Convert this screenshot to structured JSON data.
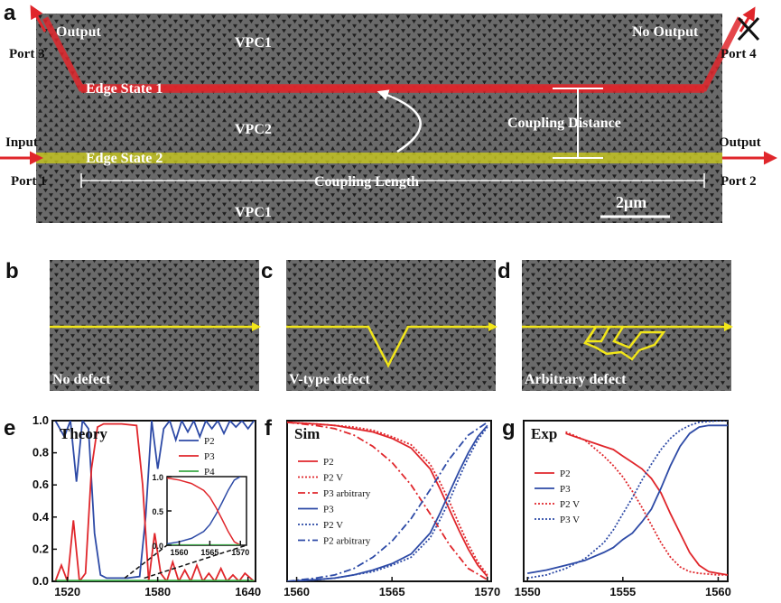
{
  "colors": {
    "red": "#e0262b",
    "blue": "#2d4aa6",
    "green": "#3aa845",
    "yellow": "#f2e619",
    "sem": "#555555"
  },
  "panel_a": {
    "letter": "a",
    "vpc_top": "VPC1",
    "vpc_mid": "VPC2",
    "vpc_bot": "VPC1",
    "output_tl": "Output",
    "port3": "Port 3",
    "no_output": "No Output",
    "port4": "Port 4",
    "input": "Input",
    "port1": "Port 1",
    "output_r": "Output",
    "port2": "Port 2",
    "edge1": "Edge State 1",
    "edge2": "Edge State 2",
    "coupling_distance": "Coupling Distance",
    "coupling_length": "Coupling Length",
    "scale": "2μm"
  },
  "panel_b": {
    "letter": "b",
    "label": "No defect"
  },
  "panel_c": {
    "letter": "c",
    "label": "V-type defect"
  },
  "panel_d": {
    "letter": "d",
    "label": "Arbitrary defect"
  },
  "chart_data": [
    {
      "panel": "e",
      "type": "line",
      "title": "Theory",
      "xlim": [
        1510,
        1645
      ],
      "ylim": [
        0,
        1.0
      ],
      "xticks": [
        1520,
        1580,
        1640
      ],
      "yticks": [
        0.0,
        0.2,
        0.4,
        0.6,
        0.8,
        1.0
      ],
      "ytick_labels": [
        "0.0",
        "0.2",
        "0.4",
        "0.6",
        "0.8",
        "1.0"
      ],
      "series": [
        {
          "name": "P2",
          "color": "#2d4aa6",
          "x": [
            1512,
            1518,
            1522,
            1526,
            1530,
            1534,
            1538,
            1542,
            1546,
            1550,
            1560,
            1568,
            1572,
            1576,
            1580,
            1584,
            1588,
            1592,
            1596,
            1600,
            1604,
            1608,
            1612,
            1616,
            1620,
            1624,
            1628,
            1632,
            1636,
            1640,
            1644
          ],
          "y": [
            1.0,
            0.9,
            1.0,
            0.62,
            1.0,
            0.95,
            0.3,
            0.04,
            0.02,
            0.02,
            0.02,
            0.03,
            0.4,
            1.0,
            0.7,
            0.95,
            1.0,
            0.88,
            1.0,
            0.93,
            1.0,
            0.9,
            1.0,
            0.95,
            1.0,
            0.92,
            1.0,
            0.96,
            1.0,
            0.95,
            1.0
          ]
        },
        {
          "name": "P3",
          "color": "#e0262b",
          "x": [
            1512,
            1516,
            1520,
            1524,
            1528,
            1532,
            1536,
            1540,
            1544,
            1548,
            1556,
            1566,
            1570,
            1574,
            1578,
            1582,
            1586,
            1590,
            1594,
            1598,
            1602,
            1606,
            1610,
            1614,
            1618,
            1622,
            1626,
            1630,
            1634,
            1638,
            1644
          ],
          "y": [
            0.0,
            0.1,
            0.0,
            0.38,
            0.0,
            0.05,
            0.7,
            0.96,
            0.98,
            0.98,
            0.98,
            0.97,
            0.6,
            0.0,
            0.3,
            0.05,
            0.0,
            0.12,
            0.0,
            0.07,
            0.0,
            0.1,
            0.0,
            0.05,
            0.0,
            0.08,
            0.0,
            0.04,
            0.0,
            0.05,
            0.0
          ]
        },
        {
          "name": "P4",
          "color": "#3aa845",
          "x": [
            1512,
            1644
          ],
          "y": [
            0.005,
            0.005
          ]
        }
      ],
      "inset": {
        "xlim": [
          1558,
          1571
        ],
        "ylim": [
          0,
          1.0
        ],
        "xticks": [
          1560,
          1565,
          1570
        ],
        "yticks": [
          0.0,
          0.5,
          1.0
        ],
        "ytick_labels": [
          "0.0",
          "0.5",
          "1.0"
        ],
        "series": [
          {
            "name": "P2",
            "color": "#2d4aa6",
            "x": [
              1558,
              1560,
              1562,
              1564,
              1565,
              1566,
              1567,
              1568,
              1569,
              1570
            ],
            "y": [
              0.02,
              0.05,
              0.1,
              0.2,
              0.3,
              0.45,
              0.62,
              0.8,
              0.95,
              1.0
            ]
          },
          {
            "name": "P3",
            "color": "#e0262b",
            "x": [
              1558,
              1560,
              1562,
              1564,
              1565,
              1566,
              1567,
              1568,
              1569,
              1570
            ],
            "y": [
              0.98,
              0.95,
              0.9,
              0.8,
              0.7,
              0.55,
              0.38,
              0.2,
              0.05,
              0.0
            ]
          },
          {
            "name": "P4",
            "color": "#3aa845",
            "x": [
              1558,
              1570
            ],
            "y": [
              0.005,
              0.005
            ]
          }
        ]
      }
    },
    {
      "panel": "f",
      "type": "line",
      "title": "Sim",
      "xlim": [
        1559.5,
        1570.2
      ],
      "ylim": [
        0,
        1.0
      ],
      "xticks": [
        1560,
        1565,
        1570
      ],
      "series": [
        {
          "name": "P2",
          "color": "#e0262b",
          "style": "solid",
          "x": [
            1559.5,
            1561,
            1562,
            1563,
            1564,
            1565,
            1566,
            1567,
            1567.5,
            1568,
            1568.5,
            1569,
            1569.5,
            1570
          ],
          "y": [
            0.99,
            0.98,
            0.97,
            0.95,
            0.93,
            0.89,
            0.83,
            0.7,
            0.58,
            0.45,
            0.32,
            0.2,
            0.1,
            0.03
          ]
        },
        {
          "name": "P2 V",
          "color": "#e0262b",
          "style": "dotted",
          "x": [
            1559.5,
            1561,
            1562,
            1563,
            1564,
            1565,
            1566,
            1567,
            1567.5,
            1568,
            1568.5,
            1569,
            1569.5,
            1570
          ],
          "y": [
            0.99,
            0.98,
            0.97,
            0.96,
            0.94,
            0.9,
            0.85,
            0.73,
            0.62,
            0.5,
            0.36,
            0.23,
            0.12,
            0.04
          ]
        },
        {
          "name": "P3 arbitrary",
          "color": "#e0262b",
          "style": "dashdot",
          "x": [
            1559.5,
            1561,
            1562,
            1563,
            1564,
            1565,
            1566,
            1567,
            1568,
            1569,
            1570
          ],
          "y": [
            0.99,
            0.97,
            0.95,
            0.91,
            0.84,
            0.74,
            0.6,
            0.42,
            0.23,
            0.08,
            0.01
          ]
        },
        {
          "name": "P3",
          "color": "#2d4aa6",
          "style": "solid",
          "x": [
            1559.5,
            1561,
            1562,
            1563,
            1564,
            1565,
            1566,
            1567,
            1567.5,
            1568,
            1568.5,
            1569,
            1569.5,
            1570
          ],
          "y": [
            0.0,
            0.01,
            0.02,
            0.04,
            0.07,
            0.11,
            0.17,
            0.3,
            0.42,
            0.55,
            0.68,
            0.8,
            0.9,
            0.97
          ]
        },
        {
          "name": "P2 V",
          "color": "#2d4aa6",
          "style": "dotted",
          "x": [
            1559.5,
            1561,
            1562,
            1563,
            1564,
            1565,
            1566,
            1567,
            1567.5,
            1568,
            1568.5,
            1569,
            1569.5,
            1570
          ],
          "y": [
            0.0,
            0.01,
            0.02,
            0.04,
            0.06,
            0.1,
            0.15,
            0.27,
            0.38,
            0.5,
            0.64,
            0.77,
            0.88,
            0.96
          ]
        },
        {
          "name": "P2 arbitrary",
          "color": "#2d4aa6",
          "style": "dashdot",
          "x": [
            1559.5,
            1561,
            1562,
            1563,
            1564,
            1565,
            1566,
            1567,
            1568,
            1569,
            1570
          ],
          "y": [
            0.0,
            0.02,
            0.04,
            0.08,
            0.15,
            0.25,
            0.39,
            0.57,
            0.76,
            0.91,
            0.99
          ]
        }
      ]
    },
    {
      "panel": "g",
      "type": "line",
      "title": "Exp",
      "xlim": [
        1549.8,
        1560.5
      ],
      "ylim": [
        0,
        1.0
      ],
      "xticks": [
        1550,
        1555,
        1560
      ],
      "series": [
        {
          "name": "P2",
          "color": "#e0262b",
          "style": "solid",
          "x": [
            1552,
            1552.5,
            1553,
            1553.5,
            1554,
            1554.5,
            1555,
            1555.5,
            1556,
            1556.5,
            1557,
            1557.5,
            1558,
            1558.5,
            1559,
            1559.5,
            1560,
            1560.5
          ],
          "y": [
            0.92,
            0.9,
            0.88,
            0.86,
            0.84,
            0.82,
            0.78,
            0.74,
            0.7,
            0.64,
            0.55,
            0.42,
            0.3,
            0.18,
            0.1,
            0.06,
            0.05,
            0.04
          ]
        },
        {
          "name": "P3",
          "color": "#2d4aa6",
          "style": "solid",
          "x": [
            1550,
            1551,
            1552,
            1553,
            1554,
            1554.5,
            1555,
            1555.5,
            1556,
            1556.5,
            1557,
            1557.5,
            1558,
            1558.5,
            1559,
            1559.5,
            1560,
            1560.5
          ],
          "y": [
            0.05,
            0.07,
            0.1,
            0.13,
            0.18,
            0.21,
            0.26,
            0.3,
            0.37,
            0.45,
            0.58,
            0.72,
            0.84,
            0.92,
            0.96,
            0.97,
            0.97,
            0.97
          ]
        },
        {
          "name": "P2 V",
          "color": "#e0262b",
          "style": "dotted",
          "x": [
            1552,
            1553,
            1554,
            1554.5,
            1555,
            1555.5,
            1556,
            1556.5,
            1557,
            1557.5,
            1558,
            1558.5,
            1559,
            1560,
            1560.5
          ],
          "y": [
            0.93,
            0.88,
            0.78,
            0.72,
            0.65,
            0.56,
            0.46,
            0.35,
            0.24,
            0.15,
            0.09,
            0.06,
            0.05,
            0.04,
            0.04
          ]
        },
        {
          "name": "P3 V",
          "color": "#2d4aa6",
          "style": "dotted",
          "x": [
            1550,
            1551,
            1552,
            1553,
            1554,
            1554.5,
            1555,
            1555.5,
            1556,
            1556.5,
            1557,
            1557.5,
            1558,
            1558.5,
            1559,
            1560,
            1560.5
          ],
          "y": [
            0.02,
            0.04,
            0.08,
            0.14,
            0.24,
            0.32,
            0.42,
            0.52,
            0.63,
            0.73,
            0.82,
            0.89,
            0.94,
            0.97,
            0.99,
            1.0,
            1.0
          ]
        }
      ]
    }
  ]
}
